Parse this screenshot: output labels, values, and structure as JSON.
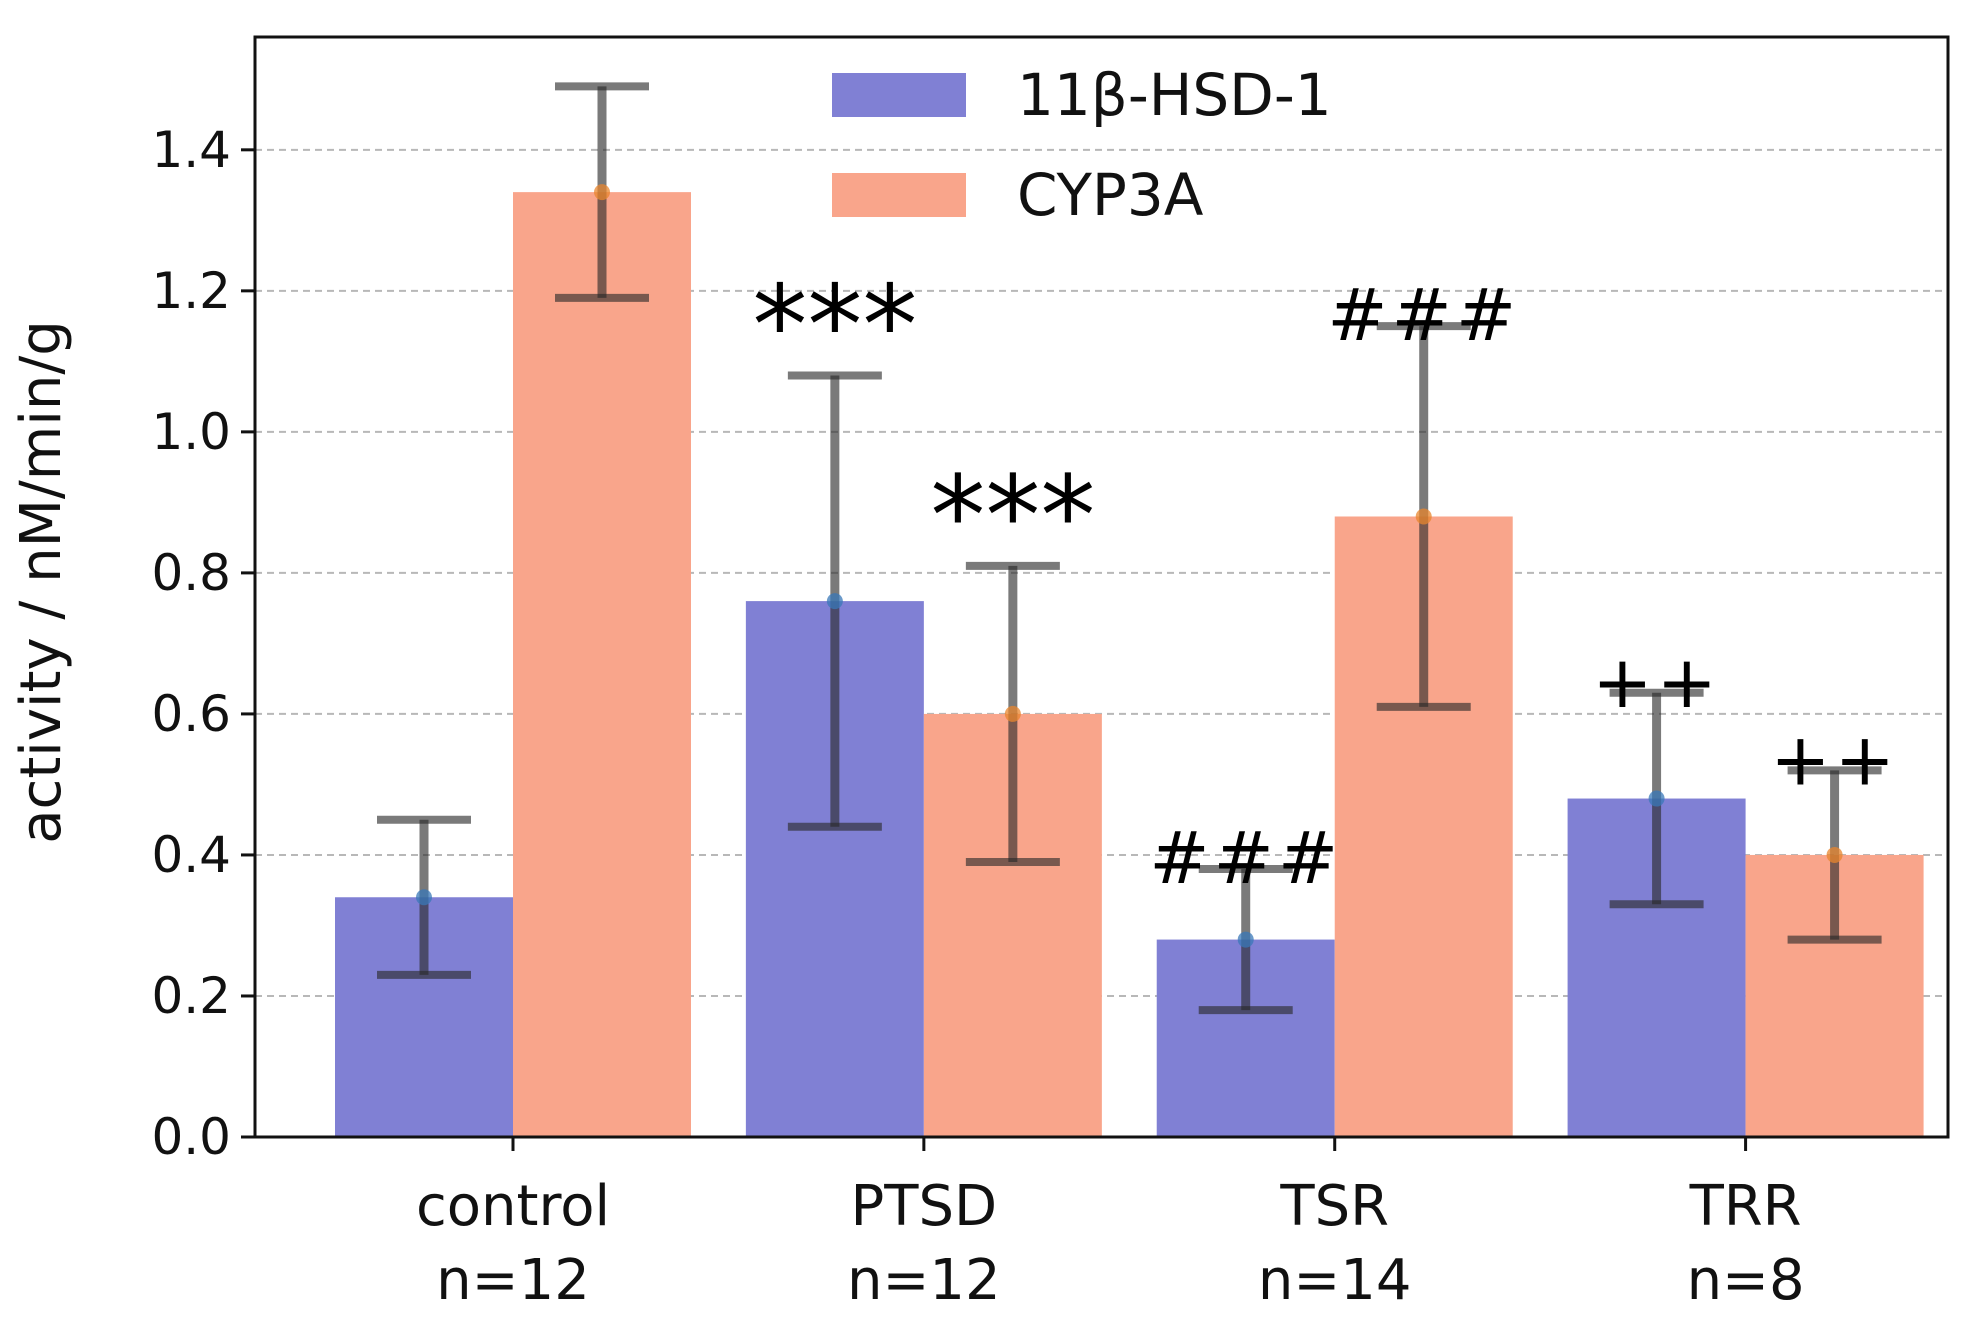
{
  "chart_data": {
    "type": "bar",
    "title": "",
    "xlabel": "",
    "ylabel": "activity / nM/min/g",
    "ylim": [
      0,
      1.56
    ],
    "yticks": [
      "0.0",
      "0.2",
      "0.4",
      "0.6",
      "0.8",
      "1.0",
      "1.2",
      "1.4"
    ],
    "grid": "horizontal dashed",
    "legend_position": "top-center",
    "categories": [
      {
        "name": "control",
        "n": "n=12"
      },
      {
        "name": "PTSD",
        "n": "n=12"
      },
      {
        "name": "TSR",
        "n": "n=14"
      },
      {
        "name": "TRR",
        "n": "n=8"
      }
    ],
    "series": [
      {
        "name": "11β-HSD-1",
        "color": "#8080d4",
        "values": [
          0.34,
          0.76,
          0.28,
          0.48
        ],
        "err_low": [
          0.23,
          0.44,
          0.18,
          0.33
        ],
        "err_high": [
          0.45,
          1.08,
          0.38,
          0.63
        ],
        "annotations": [
          "",
          "***",
          "###",
          "++"
        ]
      },
      {
        "name": "CYP3A",
        "color": "#f9a58b",
        "values": [
          1.34,
          0.6,
          0.88,
          0.4
        ],
        "err_low": [
          1.19,
          0.39,
          0.61,
          0.28
        ],
        "err_high": [
          1.49,
          0.81,
          1.15,
          0.52
        ],
        "annotations": [
          "",
          "***",
          "###",
          "++"
        ]
      }
    ]
  }
}
